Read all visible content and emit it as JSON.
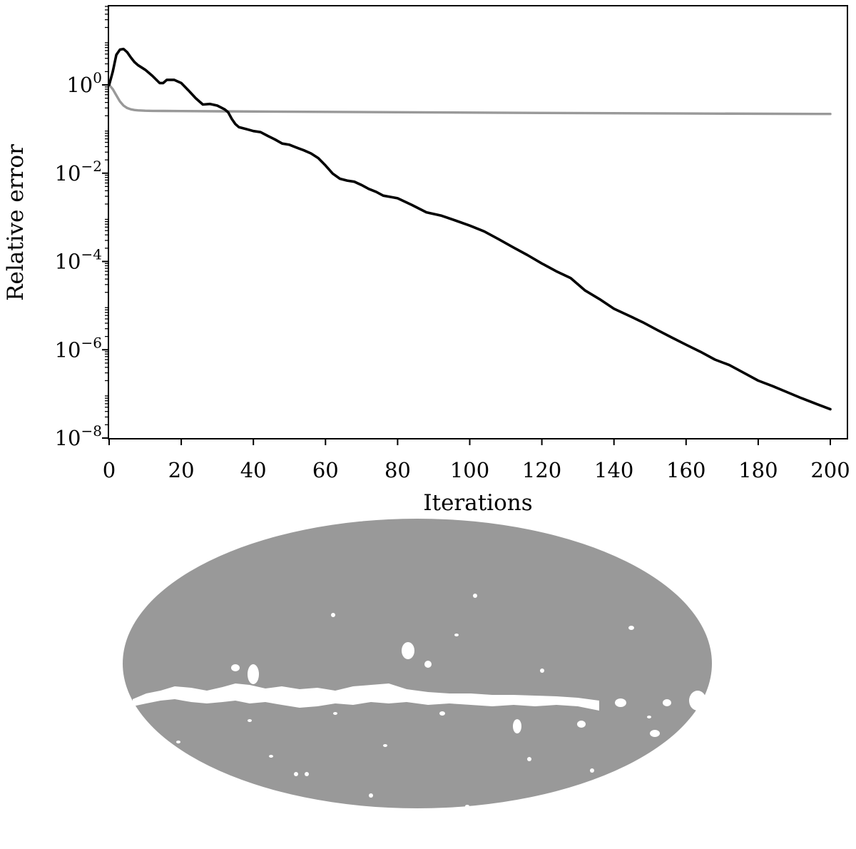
{
  "chart_data": [
    {
      "type": "line",
      "xlabel": "Iterations",
      "ylabel": "Relative error",
      "xlim": [
        0,
        200
      ],
      "ylim": [
        1e-08,
        100.0
      ],
      "yscale": "log",
      "grid": false,
      "x_ticks": [
        0,
        20,
        40,
        60,
        80,
        100,
        120,
        140,
        160,
        180,
        200
      ],
      "x_tick_labels": [
        "0",
        "20",
        "40",
        "60",
        "80",
        "100",
        "120",
        "140",
        "160",
        "180",
        "200"
      ],
      "y_ticks": [
        1e-08,
        1e-06,
        0.0001,
        0.01,
        1.0
      ],
      "y_tick_labels": [
        {
          "base": "10",
          "exp": "−8"
        },
        {
          "base": "10",
          "exp": "−6"
        },
        {
          "base": "10",
          "exp": "−4"
        },
        {
          "base": "10",
          "exp": "−2"
        },
        {
          "base": "10",
          "exp": "0"
        }
      ],
      "series": [
        {
          "color": "#000000",
          "x": [
            0,
            1,
            2,
            3,
            4,
            5,
            6,
            7,
            8,
            10,
            12,
            14,
            15,
            16,
            18,
            20,
            22,
            24,
            26,
            28,
            30,
            32,
            33,
            34,
            35,
            36,
            38,
            40,
            42,
            44,
            46,
            48,
            50,
            52,
            54,
            56,
            58,
            60,
            62,
            64,
            66,
            68,
            70,
            72,
            74,
            76,
            78,
            80,
            84,
            88,
            92,
            96,
            100,
            104,
            108,
            112,
            116,
            120,
            124,
            128,
            132,
            136,
            140,
            144,
            148,
            152,
            156,
            160,
            164,
            168,
            172,
            176,
            180,
            184,
            188,
            192,
            196,
            200
          ],
          "y": [
            1.0,
            2.0,
            4.8,
            6.3,
            6.5,
            5.5,
            4.2,
            3.3,
            2.8,
            2.2,
            1.6,
            1.1,
            1.1,
            1.3,
            1.3,
            1.1,
            0.75,
            0.5,
            0.36,
            0.37,
            0.34,
            0.28,
            0.24,
            0.17,
            0.13,
            0.11,
            0.1,
            0.09,
            0.085,
            0.07,
            0.058,
            0.047,
            0.044,
            0.038,
            0.033,
            0.028,
            0.022,
            0.015,
            0.0098,
            0.0075,
            0.0068,
            0.0064,
            0.0054,
            0.0044,
            0.0038,
            0.0031,
            0.0029,
            0.0027,
            0.0019,
            0.0013,
            0.0011,
            0.00085,
            0.00065,
            0.00048,
            0.00032,
            0.00021,
            0.00014,
            9e-05,
            6e-05,
            4.2e-05,
            2.2e-05,
            1.4e-05,
            8.5e-06,
            6e-06,
            4.2e-06,
            2.8e-06,
            1.9e-06,
            1.3e-06,
            9e-07,
            6e-07,
            4.5e-07,
            3e-07,
            2e-07,
            1.5e-07,
            1.1e-07,
            8e-08,
            6e-08,
            4.5e-08
          ]
        },
        {
          "color": "#999999",
          "x": [
            0,
            1,
            2,
            3,
            4,
            5,
            6,
            7,
            8,
            10,
            12,
            15,
            20,
            30,
            50,
            80,
            120,
            160,
            200
          ],
          "y": [
            1.0,
            0.8,
            0.58,
            0.42,
            0.34,
            0.3,
            0.28,
            0.27,
            0.265,
            0.26,
            0.258,
            0.257,
            0.255,
            0.252,
            0.247,
            0.24,
            0.232,
            0.225,
            0.22
          ]
        }
      ]
    },
    {
      "type": "heatmap",
      "projection": "mollweide",
      "background_color": "#999999",
      "mask_color": "#ffffff"
    }
  ]
}
